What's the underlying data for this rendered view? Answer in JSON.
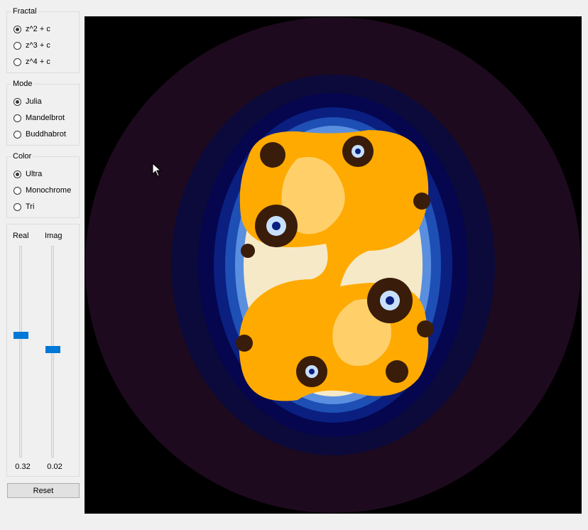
{
  "fractal_group": {
    "title": "Fractal",
    "options": [
      {
        "label": "z^2 + c",
        "checked": true
      },
      {
        "label": "z^3 + c",
        "checked": false
      },
      {
        "label": "z^4 + c",
        "checked": false
      }
    ]
  },
  "mode_group": {
    "title": "Mode",
    "options": [
      {
        "label": "Julia",
        "checked": true
      },
      {
        "label": "Mandelbrot",
        "checked": false
      },
      {
        "label": "Buddhabrot",
        "checked": false
      }
    ]
  },
  "color_group": {
    "title": "Color",
    "options": [
      {
        "label": "Ultra",
        "checked": true
      },
      {
        "label": "Monochrome",
        "checked": false
      },
      {
        "label": "Tri",
        "checked": false
      }
    ]
  },
  "sliders": {
    "real": {
      "label": "Real",
      "value": "0.32",
      "position": 0.42
    },
    "imag": {
      "label": "Imag",
      "value": "0.02",
      "position": 0.49
    }
  },
  "reset_button": {
    "label": "Reset"
  },
  "colors": {
    "accent": "#0078d7",
    "fractal_orange": "#ffaa00",
    "fractal_blue": "#0a1f80",
    "background_purple": "#1e0a1e"
  }
}
